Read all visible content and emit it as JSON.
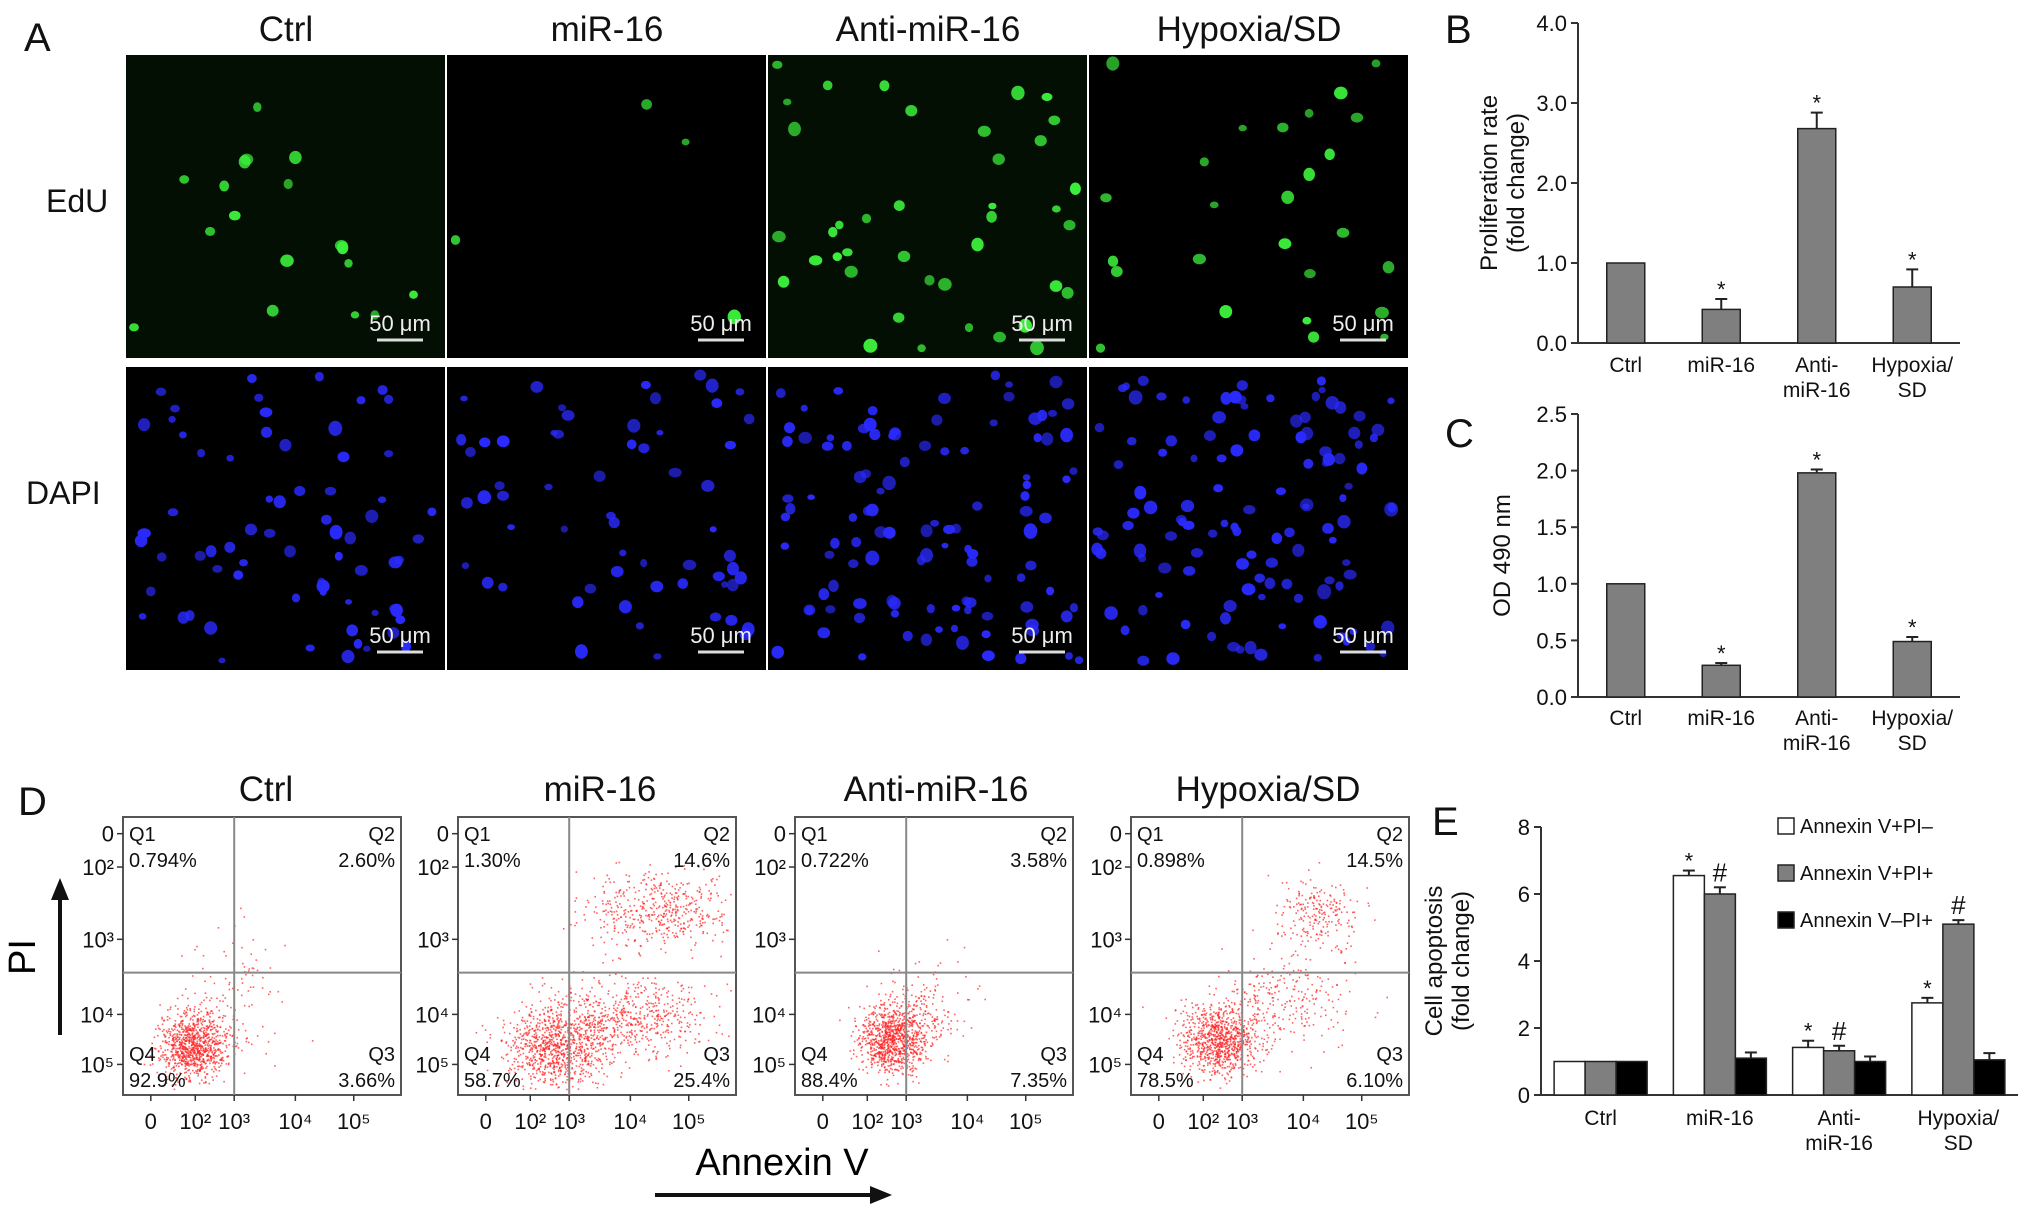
{
  "panel_letters": {
    "a": "A",
    "b": "B",
    "c": "C",
    "d": "D",
    "e": "E"
  },
  "panel_a": {
    "columns": [
      "Ctrl",
      "miR-16",
      "Anti-miR-16",
      "Hypoxia/SD"
    ],
    "rows": [
      "EdU",
      "DAPI"
    ],
    "scale_bar": "50 μm",
    "colors": {
      "edu": "#3cf03c",
      "dapi": "#2a2aff",
      "background": "#000000"
    }
  },
  "panel_d": {
    "columns": [
      "Ctrl",
      "miR-16",
      "Anti-miR-16",
      "Hypoxia/SD"
    ],
    "y_label": "PI",
    "x_label": "Annexin V",
    "y_ticks": [
      "10⁵",
      "10⁴",
      "10³",
      "10²",
      "0"
    ],
    "x_ticks": [
      "0",
      "10²",
      "10³",
      "10⁴",
      "10⁵"
    ],
    "quadrant_names": [
      "Q1",
      "Q2",
      "Q3",
      "Q4"
    ],
    "plots": [
      {
        "q1": "0.794%",
        "q2": "2.60%",
        "q3": "3.66%",
        "q4": "92.9%"
      },
      {
        "q1": "1.30%",
        "q2": "14.6%",
        "q3": "25.4%",
        "q4": "58.7%"
      },
      {
        "q1": "0.722%",
        "q2": "3.58%",
        "q3": "7.35%",
        "q4": "88.4%"
      },
      {
        "q1": "0.898%",
        "q2": "14.5%",
        "q3": "6.10%",
        "q4": "78.5%"
      }
    ],
    "dot_color": "#ff2020"
  },
  "chart_data": [
    {
      "id": "B",
      "type": "bar",
      "categories": [
        "Ctrl",
        "miR-16",
        "Anti-\nmiR-16",
        "Hypoxia/\nSD"
      ],
      "values": [
        1.0,
        0.42,
        2.68,
        0.7
      ],
      "errors": [
        0,
        0.13,
        0.2,
        0.22
      ],
      "markers": [
        "",
        "*",
        "*",
        "*"
      ],
      "ylabel": "Proliferation rate\n(fold change)",
      "ylim": [
        0,
        4.0
      ],
      "yticks": [
        "0.0",
        "1.0",
        "2.0",
        "3.0",
        "4.0"
      ],
      "bar_color": "#7f7f7f"
    },
    {
      "id": "C",
      "type": "bar",
      "categories": [
        "Ctrl",
        "miR-16",
        "Anti-\nmiR-16",
        "Hypoxia/\nSD"
      ],
      "values": [
        1.0,
        0.28,
        1.98,
        0.49
      ],
      "errors": [
        0,
        0.02,
        0.03,
        0.04
      ],
      "markers": [
        "",
        "*",
        "*",
        "*"
      ],
      "ylabel": "OD 490 nm",
      "ylim": [
        0,
        2.5
      ],
      "yticks": [
        "0.0",
        "0.5",
        "1.0",
        "1.5",
        "2.0",
        "2.5"
      ],
      "bar_color": "#7f7f7f"
    },
    {
      "id": "E",
      "type": "bar",
      "categories": [
        "Ctrl",
        "miR-16",
        "Anti-\nmiR-16",
        "Hypoxia/\nSD"
      ],
      "series": [
        {
          "name": "Annexin V+PI–",
          "values": [
            1.0,
            6.55,
            1.42,
            2.75
          ],
          "errors": [
            0,
            0.15,
            0.2,
            0.15
          ],
          "markers": [
            "",
            "*",
            "*",
            "*"
          ],
          "color": "#ffffff"
        },
        {
          "name": "Annexin V+PI+",
          "values": [
            1.0,
            6.0,
            1.32,
            5.1
          ],
          "errors": [
            0,
            0.2,
            0.15,
            0.12
          ],
          "markers": [
            "",
            "#",
            "#",
            "#"
          ],
          "color": "#7f7f7f"
        },
        {
          "name": "Annexin V–PI+",
          "values": [
            1.0,
            1.1,
            1.0,
            1.05
          ],
          "errors": [
            0,
            0.17,
            0.15,
            0.2
          ],
          "markers": [
            "",
            "",
            "",
            ""
          ],
          "color": "#000000"
        }
      ],
      "ylabel": "Cell apoptosis\n(fold change)",
      "ylim": [
        0,
        8
      ],
      "yticks": [
        "0",
        "2",
        "4",
        "6",
        "8"
      ],
      "legend": "top-right"
    }
  ]
}
